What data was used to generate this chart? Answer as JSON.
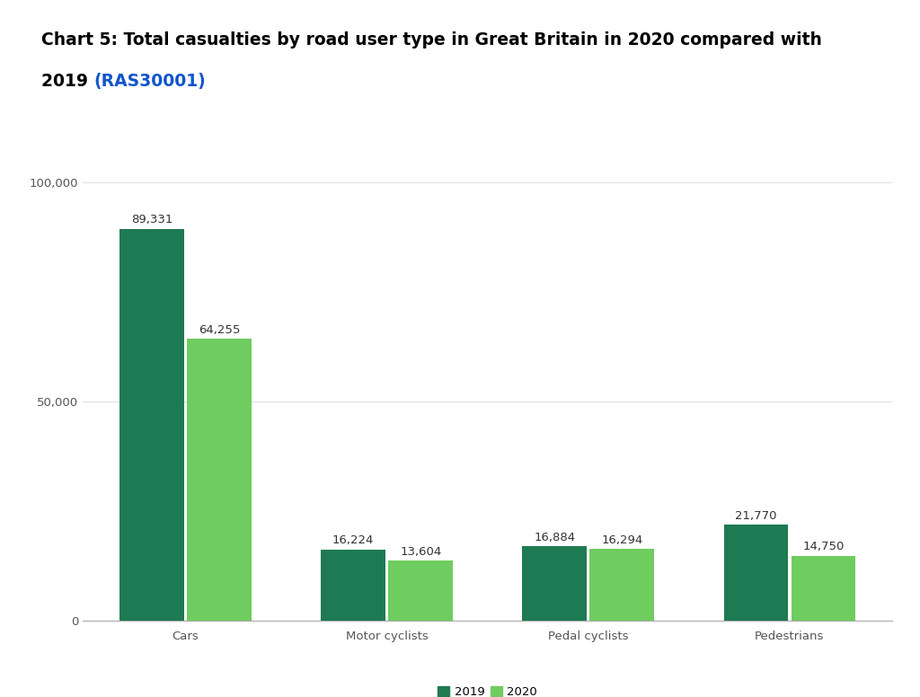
{
  "title_line1": "Chart 5: Total casualties by road user type in Great Britain in 2020 compared with",
  "title_line2_black": "2019 ",
  "title_link": "(RAS30001)",
  "title_link_color": "#1155CC",
  "title_black_color": "#000000",
  "title_fontsize": 13.5,
  "categories": [
    "Cars",
    "Motor cyclists",
    "Pedal cyclists",
    "Pedestrians"
  ],
  "values_2019": [
    89331,
    16224,
    16884,
    21770
  ],
  "values_2020": [
    64255,
    13604,
    16294,
    14750
  ],
  "labels_2019": [
    "89,331",
    "16,224",
    "16,884",
    "21,770"
  ],
  "labels_2020": [
    "64,255",
    "13,604",
    "16,294",
    "14,750"
  ],
  "color_2019": "#1e7a52",
  "color_2020": "#6fcc5f",
  "bar_width": 0.32,
  "ylim": [
    0,
    105000
  ],
  "yticks": [
    0,
    50000,
    100000
  ],
  "ytick_labels": [
    "0",
    "50,000",
    "100,000"
  ],
  "legend_labels": [
    "2019",
    "2020"
  ],
  "background_color": "#ffffff",
  "grid_color": "#e0e0e0",
  "label_fontsize": 9.5,
  "axis_fontsize": 9.5,
  "bar_gap": 0.015
}
